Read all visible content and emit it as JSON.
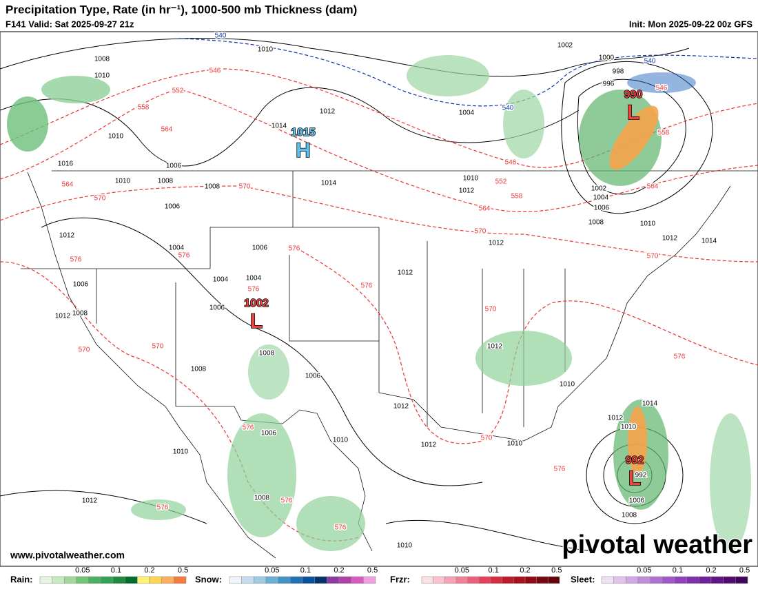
{
  "header": {
    "title": "Precipitation Type, Rate (in hr⁻¹), 1000-500 mb Thickness (dam)",
    "valid": "F141 Valid: Sat 2025-09-27 21z",
    "init": "Init: Mon 2025-09-22 00z GFS"
  },
  "centers": [
    {
      "value": "1015",
      "letter": "H"
    },
    {
      "value": "1002",
      "letter": "L"
    },
    {
      "value": "990",
      "letter": "L"
    },
    {
      "value": "992",
      "letter": "L"
    }
  ],
  "isobar_labels": [
    "1008",
    "1010",
    "1010",
    "1002",
    "1000",
    "998",
    "996",
    "1012",
    "1004",
    "1014",
    "1010",
    "1016",
    "1006",
    "1010",
    "1008",
    "1008",
    "1014",
    "1010",
    "1012",
    "1002",
    "1004",
    "1006",
    "1008",
    "1010",
    "1006",
    "1012",
    "1004",
    "1006",
    "1012",
    "1012",
    "1014",
    "1012",
    "1004",
    "1004",
    "1006",
    "1006",
    "1012",
    "1008",
    "1008",
    "1008",
    "1006",
    "1012",
    "1010",
    "1012",
    "1006",
    "1010",
    "1012",
    "1010",
    "1014",
    "1012",
    "1010",
    "1010",
    "1012",
    "1008",
    "1006",
    "1008",
    "1010",
    "992"
  ],
  "thickness_labels": [
    "546",
    "552",
    "558",
    "564",
    "570",
    "564",
    "570",
    "576",
    "576",
    "576",
    "576",
    "576",
    "570",
    "570",
    "570",
    "576",
    "576",
    "576",
    "576",
    "570",
    "576",
    "576",
    "570",
    "564",
    "558",
    "552",
    "546",
    "558",
    "564",
    "570",
    "546"
  ],
  "thickness_540_labels": [
    "540",
    "540",
    "540"
  ],
  "footer": {
    "site": "www.pivotalweather.com",
    "logo": "pivotal weather"
  },
  "legend": [
    {
      "name": "Rain:",
      "ticks": [
        "0.05",
        "0.1",
        "0.2",
        "0.5"
      ]
    },
    {
      "name": "Snow:",
      "ticks": [
        "0.05",
        "0.1",
        "0.2",
        "0.5"
      ]
    },
    {
      "name": "Frzr:",
      "ticks": [
        "0.05",
        "0.1",
        "0.2",
        "0.5"
      ]
    },
    {
      "name": "Sleet:",
      "ticks": [
        "0.05",
        "0.1",
        "0.2",
        "0.5"
      ]
    }
  ]
}
